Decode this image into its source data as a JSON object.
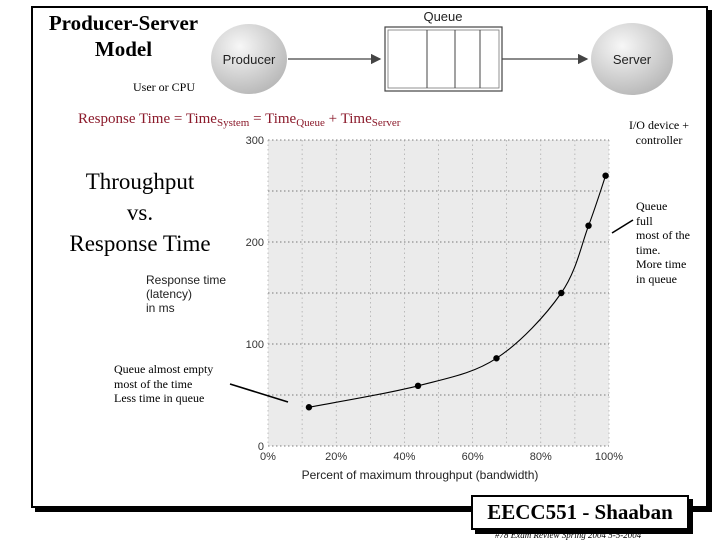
{
  "slide": {
    "title_line1": "Producer-Server",
    "title_line2": "Model",
    "queue_label": "Queue",
    "producer_label": "Producer",
    "server_label": "Server",
    "user_cpu_label": "User or CPU",
    "io_label": "I/O device + controller",
    "response_eq": {
      "lhs": "Response Time",
      "eq1": "=",
      "t1": "Time",
      "t1_sub": "System",
      "eq2": "=",
      "t2": "Time",
      "t2_sub": "Queue",
      "plus": "+",
      "t3": "Time",
      "t3_sub": "Server"
    },
    "big_title_line1": "Throughput",
    "big_title_line2": "vs.",
    "big_title_line3": "Response Time",
    "annot_left": [
      "Queue almost empty",
      "most of the time",
      "Less time in queue"
    ],
    "annot_right": [
      "Queue",
      "full",
      "most of the",
      "time.",
      "More time",
      "in queue"
    ],
    "footer": "EECC551 - Shaaban",
    "footer_note": "#78   Exam Review  Spring 2004  5-5-2004",
    "colors": {
      "accent": "#8b1a2b",
      "plot_bg": "#ebebeb",
      "node_fill": "#d8d8d8"
    }
  },
  "chart_data": {
    "type": "line",
    "title": "",
    "xlabel": "Percent of maximum throughput (bandwidth)",
    "ylabel": [
      "Response time",
      "(latency)",
      "in ms"
    ],
    "xlim": [
      0,
      100
    ],
    "ylim": [
      0,
      300
    ],
    "x_ticks": [
      "0%",
      "20%",
      "40%",
      "60%",
      "80%",
      "100%"
    ],
    "y_ticks": [
      "0",
      "100",
      "200",
      "300"
    ],
    "grid": "horizontal dotted",
    "series": [
      {
        "points": [
          {
            "x": 12,
            "y": 38
          },
          {
            "x": 44,
            "y": 59
          },
          {
            "x": 67,
            "y": 86
          },
          {
            "x": 86,
            "y": 150
          },
          {
            "x": 94,
            "y": 216
          },
          {
            "x": 99,
            "y": 265
          }
        ]
      }
    ]
  }
}
